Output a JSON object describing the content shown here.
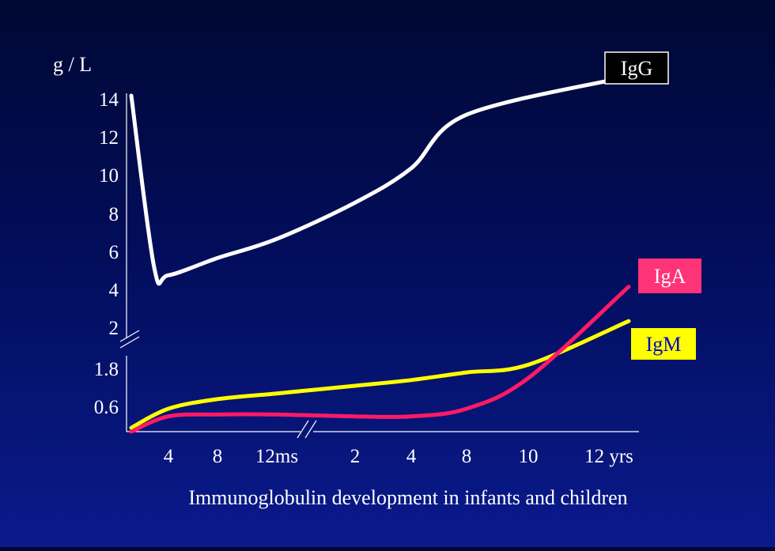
{
  "chart_data": {
    "type": "line",
    "y_unit_label": "g / L",
    "y_ticks": [
      "0.6",
      "1.8",
      "2",
      "4",
      "6",
      "8",
      "10",
      "12",
      "14"
    ],
    "x_ticks": [
      "4",
      "8",
      "12ms",
      "2",
      "4",
      "8",
      "10",
      "12 yrs"
    ],
    "caption": "Immunoglobulin development in infants and children",
    "axis_breaks": [
      "y between 1.8 and 2",
      "x between 12 months and 2 years"
    ],
    "series": [
      {
        "name": "IgG",
        "color": "#ffffff",
        "label_box": {
          "fill": "#000000",
          "text_color": "#ffffff",
          "border": "#ffffff"
        },
        "points": [
          {
            "x": "birth",
            "y": 14
          },
          {
            "x": "3 ms",
            "y": 5
          },
          {
            "x": "4 ms",
            "y": 4.6
          },
          {
            "x": "8 ms",
            "y": 5.5
          },
          {
            "x": "12 ms",
            "y": 6.5
          },
          {
            "x": "2 yrs",
            "y": 8.4
          },
          {
            "x": "4 yrs",
            "y": 10.2
          },
          {
            "x": "8 yrs",
            "y": 13
          },
          {
            "x": "12 yrs",
            "y": 15
          }
        ]
      },
      {
        "name": "IgA",
        "color": "#ff1a66",
        "label_box": {
          "fill": "#ff3377",
          "text_color": "#ffffff"
        },
        "points": [
          {
            "x": "birth",
            "y": 0
          },
          {
            "x": "4 ms",
            "y": 0.4
          },
          {
            "x": "8 ms",
            "y": 0.45
          },
          {
            "x": "12 ms",
            "y": 0.45
          },
          {
            "x": "2 yrs",
            "y": 0.4
          },
          {
            "x": "4 yrs",
            "y": 0.4
          },
          {
            "x": "8 yrs",
            "y": 0.6
          },
          {
            "x": "10 yrs",
            "y": 1.4
          },
          {
            "x": "12 yrs",
            "y": 4
          }
        ]
      },
      {
        "name": "IgM",
        "color": "#ffff00",
        "label_box": {
          "fill": "#ffff00",
          "text_color": "#0000cc"
        },
        "points": [
          {
            "x": "birth",
            "y": 0.1
          },
          {
            "x": "4 ms",
            "y": 0.6
          },
          {
            "x": "8 ms",
            "y": 0.85
          },
          {
            "x": "12 ms",
            "y": 1.0
          },
          {
            "x": "2 yrs",
            "y": 1.2
          },
          {
            "x": "4 yrs",
            "y": 1.35
          },
          {
            "x": "8 yrs",
            "y": 1.55
          },
          {
            "x": "10 yrs",
            "y": 1.75
          },
          {
            "x": "12 yrs",
            "y": 2.2
          }
        ]
      }
    ]
  }
}
